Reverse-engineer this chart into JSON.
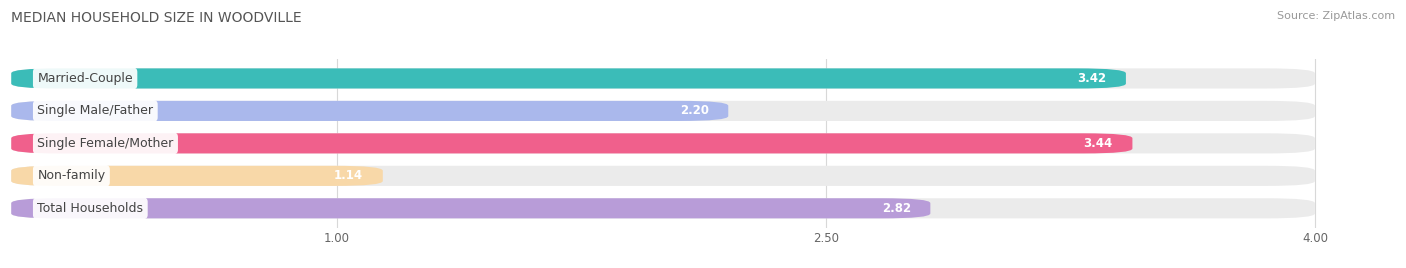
{
  "title": "MEDIAN HOUSEHOLD SIZE IN WOODVILLE",
  "source": "Source: ZipAtlas.com",
  "categories": [
    "Married-Couple",
    "Single Male/Father",
    "Single Female/Mother",
    "Non-family",
    "Total Households"
  ],
  "values": [
    3.42,
    2.2,
    3.44,
    1.14,
    2.82
  ],
  "bar_colors": [
    "#3bbcb8",
    "#aab8ec",
    "#f0608c",
    "#f8d8a8",
    "#b89cd8"
  ],
  "xlim_start": 0.0,
  "xlim_end": 4.15,
  "data_min": 0.0,
  "data_max": 4.0,
  "xticks": [
    1.0,
    2.5,
    4.0
  ],
  "xtick_labels": [
    "1.00",
    "2.50",
    "4.00"
  ],
  "title_fontsize": 10,
  "source_fontsize": 8,
  "label_fontsize": 9,
  "value_fontsize": 8.5,
  "bar_height": 0.62,
  "background_color": "#ffffff",
  "bar_bg_color": "#ebebeb"
}
